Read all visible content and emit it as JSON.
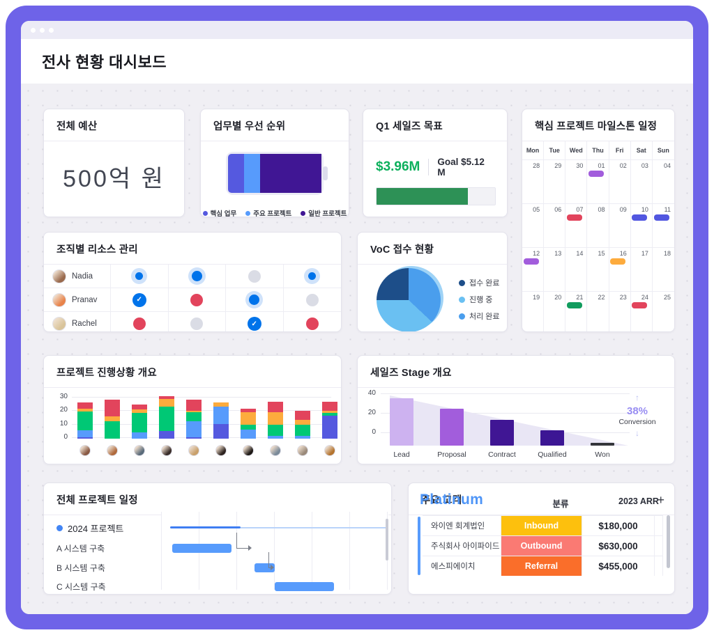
{
  "theme": {
    "frame": "#6e63e8",
    "chrome": "#ecebf6",
    "body_bg": "#f0eff4",
    "accent_blue": "#579bfc",
    "red": "#e2445c",
    "orange": "#fdab3d",
    "green": "#00c875",
    "indigo": "#5559df",
    "purple": "#a25ddc",
    "dark_purple": "#401694"
  },
  "window": {
    "title": "전사 현황 대시보드"
  },
  "cards": {
    "budget": {
      "title": "전체 예산",
      "value": "500억 원"
    },
    "priority": {
      "title": "업무별 우선 순위",
      "segments": [
        {
          "label": "핵심 업무",
          "color": "#5559df",
          "pct": 17
        },
        {
          "label": "주요 프로젝트",
          "color": "#579bfc",
          "pct": 17
        },
        {
          "label": "일반 프로젝트",
          "color": "#401694",
          "pct": 66
        }
      ]
    },
    "sales_goal": {
      "title": "Q1 세일즈 목표",
      "current": "$3.96M",
      "current_color": "#0cb05c",
      "goal_label": "Goal $5.12 M",
      "progress_pct": 77,
      "bar_color": "#2d9156"
    },
    "milestones": {
      "title": "핵심 프로젝트 마일스톤 일정",
      "day_headers": [
        "Mon",
        "Tue",
        "Wed",
        "Thu",
        "Fri",
        "Sat",
        "Sun"
      ],
      "weeks": [
        [
          {
            "d": "28"
          },
          {
            "d": "29"
          },
          {
            "d": "30"
          },
          {
            "d": "01",
            "event": "#a25ddc"
          },
          {
            "d": "02"
          },
          {
            "d": "03"
          },
          {
            "d": "04"
          }
        ],
        [
          {
            "d": "05"
          },
          {
            "d": "06"
          },
          {
            "d": "07",
            "event": "#e2445c"
          },
          {
            "d": "08"
          },
          {
            "d": "09"
          },
          {
            "d": "10",
            "event": "#5156e0"
          },
          {
            "d": "11",
            "event": "#5156e0"
          }
        ],
        [
          {
            "d": "12",
            "event": "#a25ddc"
          },
          {
            "d": "13"
          },
          {
            "d": "14"
          },
          {
            "d": "15"
          },
          {
            "d": "16",
            "event": "#fdab3d"
          },
          {
            "d": "17"
          },
          {
            "d": "18"
          }
        ],
        [
          {
            "d": "19"
          },
          {
            "d": "20"
          },
          {
            "d": "21",
            "event": "#119c5e"
          },
          {
            "d": "22"
          },
          {
            "d": "23"
          },
          {
            "d": "24",
            "event": "#e2445c"
          },
          {
            "d": "25"
          }
        ]
      ]
    },
    "resources": {
      "title": "조직별 리소스 관리",
      "rows": [
        {
          "name": "Nadia",
          "avatar_color": "#9a6a4d",
          "cells": [
            "blue-sm",
            "blue",
            "gray",
            "blue-sm"
          ]
        },
        {
          "name": "Pranav",
          "avatar_color": "#e8834a",
          "cells": [
            "check",
            "red",
            "blue",
            "gray"
          ]
        },
        {
          "name": "Rachel",
          "avatar_color": "#d9c49a",
          "cells": [
            "red",
            "gray",
            "check",
            "red"
          ]
        }
      ],
      "check_glyph": "✓"
    },
    "voc": {
      "title": "VoC 접수 현황"
    },
    "progress": {
      "title": "프로젝트 진행상황 개요"
    },
    "stage": {
      "title": "세일즈 Stage 개요",
      "conversion_value": "38%",
      "conversion_label": "Conversion",
      "arrow_up": "↑",
      "arrow_down": "↓"
    },
    "schedule": {
      "title": "전체 프로젝트 일정"
    },
    "customers": {
      "title": "주요 고객",
      "group": "Platinum",
      "columns": [
        "분류",
        "2023 ARR"
      ],
      "add_label": "+",
      "rows": [
        {
          "name": "와이엔 회계법인",
          "category": "Inbound",
          "category_color": "#fdc00d",
          "arr": "$180,000"
        },
        {
          "name": "주식회사 아이파이드",
          "category": "Outbound",
          "category_color": "#fa7a73",
          "arr": "$630,000"
        },
        {
          "name": "에스피에이치",
          "category": "Referral",
          "category_color": "#fa6e2a",
          "arr": "$455,000"
        }
      ]
    }
  },
  "chart_data": [
    {
      "id": "voc_pie",
      "type": "pie",
      "title": "VoC 접수 현황",
      "slices_from_top_clockwise": [
        {
          "label": "처리 완료",
          "pct": 37,
          "color": "#4a9eed"
        },
        {
          "label": "진행 중",
          "pct": 38,
          "color": "#6ac0f2"
        },
        {
          "label": "접수 완료",
          "pct": 25,
          "color": "#1d4e89"
        }
      ],
      "legend": [
        {
          "label": "접수 완료",
          "color": "#1d4e89"
        },
        {
          "label": "진행 중",
          "color": "#6ac0f2"
        },
        {
          "label": "처리 완료",
          "color": "#4a9eed"
        }
      ],
      "legend_position": "right"
    },
    {
      "id": "project_progress",
      "type": "bar",
      "stacked": true,
      "title": "프로젝트 진행상황 개요",
      "categories": [
        "avatar-1",
        "avatar-2",
        "avatar-3",
        "avatar-4",
        "avatar-5",
        "avatar-6",
        "avatar-7",
        "avatar-8",
        "avatar-9",
        "avatar-10"
      ],
      "avatar_colors": [
        "#8a5a44",
        "#b06a3c",
        "#5a6b7a",
        "#3a2e2a",
        "#c9a06a",
        "#2e2420",
        "#1f1a17",
        "#7a8a99",
        "#9a8a7a",
        "#b5742e"
      ],
      "series": [
        {
          "name": "indigo",
          "color": "#5559df",
          "values": [
            1,
            0,
            0,
            5.5,
            1,
            11,
            0,
            0,
            0,
            17
          ]
        },
        {
          "name": "blue",
          "color": "#579bfc",
          "values": [
            5,
            0,
            4.5,
            0,
            12,
            13,
            7,
            2,
            2,
            0
          ]
        },
        {
          "name": "green",
          "color": "#00c875",
          "values": [
            14,
            13,
            14.5,
            18.5,
            6.5,
            0,
            3.5,
            8.5,
            8.5,
            2
          ]
        },
        {
          "name": "orange",
          "color": "#fdab3d",
          "values": [
            2.5,
            3.5,
            3,
            5.5,
            1.5,
            3,
            9,
            9,
            3.5,
            2
          ]
        },
        {
          "name": "red",
          "color": "#e2445c",
          "values": [
            4.5,
            12.5,
            3.5,
            2,
            8,
            0,
            3,
            8,
            7,
            6.5
          ]
        }
      ],
      "ylim": [
        0,
        30
      ],
      "yticks": [
        0,
        10,
        20,
        30
      ],
      "grid": true
    },
    {
      "id": "sales_stage",
      "type": "bar",
      "title": "세일즈 Stage 개요",
      "categories": [
        "Lead",
        "Proposal",
        "Contract",
        "Qualified",
        "Won"
      ],
      "values": [
        41,
        28,
        15,
        2,
        -13
      ],
      "baseline_value": -16,
      "note": "funnel-style; bar tops read against y-axis, common baseline sits below the 0 gridline",
      "colors": [
        "#cdb2f0",
        "#a25ddc",
        "#401694",
        "#3c1694",
        "#33353a"
      ],
      "yticks": [
        0,
        20,
        40
      ],
      "ylim": [
        -16,
        45
      ],
      "grid": true,
      "annotation": {
        "value": "38%",
        "label": "Conversion"
      }
    },
    {
      "id": "project_schedule",
      "type": "gantt",
      "title": "전체 프로젝트 일정",
      "rows": [
        {
          "label": "2024 프로젝트",
          "kind": "timeline",
          "solid_pct": [
            4,
            35
          ],
          "light_pct": [
            35,
            100
          ]
        },
        {
          "label": "A 시스템 구축",
          "kind": "bar",
          "span_pct": [
            5,
            31
          ]
        },
        {
          "label": "B 시스템 구축",
          "kind": "bar",
          "span_pct": [
            41,
            50
          ]
        },
        {
          "label": "C 시스템 구축",
          "kind": "bar",
          "span_pct": [
            50,
            76
          ]
        }
      ]
    }
  ]
}
